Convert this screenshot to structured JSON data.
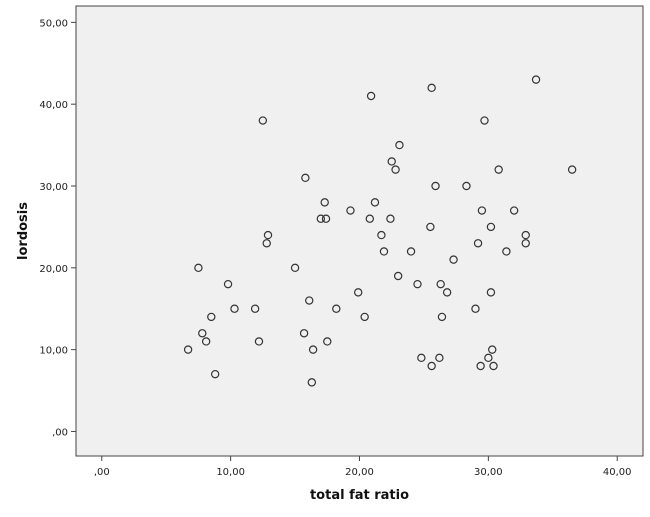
{
  "chart_data": {
    "type": "scatter",
    "title": "",
    "xlabel": "total fat ratio",
    "ylabel": "lordosis",
    "xlim": [
      -2,
      42
    ],
    "ylim": [
      -3,
      52
    ],
    "x_ticks": [
      0,
      10,
      20,
      30,
      40
    ],
    "y_ticks": [
      0,
      10,
      20,
      30,
      40,
      50
    ],
    "x_tick_labels": [
      ",00",
      "10,00",
      "20,00",
      "30,00",
      "40,00"
    ],
    "y_tick_labels": [
      ",00",
      "10,00",
      "20,00",
      "30,00",
      "40,00",
      "50,00"
    ],
    "grid": false,
    "legend": "none",
    "plot_background": "#f0f0f0",
    "marker": "open-circle",
    "marker_color": "#333333",
    "points": [
      [
        6.7,
        10
      ],
      [
        7.5,
        20
      ],
      [
        7.8,
        12
      ],
      [
        8.1,
        11
      ],
      [
        8.5,
        14
      ],
      [
        8.8,
        7
      ],
      [
        9.8,
        18
      ],
      [
        10.3,
        15
      ],
      [
        11.9,
        15
      ],
      [
        12.2,
        11
      ],
      [
        12.5,
        38
      ],
      [
        12.8,
        23
      ],
      [
        12.9,
        24
      ],
      [
        15.0,
        20
      ],
      [
        15.7,
        12
      ],
      [
        15.8,
        31
      ],
      [
        16.1,
        16
      ],
      [
        16.3,
        6
      ],
      [
        16.4,
        10
      ],
      [
        17.0,
        26
      ],
      [
        17.3,
        28
      ],
      [
        17.4,
        26
      ],
      [
        17.5,
        11
      ],
      [
        18.2,
        15
      ],
      [
        19.3,
        27
      ],
      [
        19.9,
        17
      ],
      [
        20.4,
        14
      ],
      [
        20.8,
        26
      ],
      [
        20.9,
        41
      ],
      [
        21.2,
        28
      ],
      [
        21.7,
        24
      ],
      [
        21.9,
        22
      ],
      [
        22.4,
        26
      ],
      [
        22.5,
        33
      ],
      [
        22.8,
        32
      ],
      [
        23.0,
        19
      ],
      [
        23.1,
        35
      ],
      [
        24.0,
        22
      ],
      [
        24.5,
        18
      ],
      [
        24.8,
        9
      ],
      [
        25.5,
        25
      ],
      [
        25.6,
        42
      ],
      [
        25.6,
        8
      ],
      [
        25.9,
        30
      ],
      [
        26.2,
        9
      ],
      [
        26.3,
        18
      ],
      [
        26.4,
        14
      ],
      [
        26.8,
        17
      ],
      [
        27.3,
        21
      ],
      [
        28.3,
        30
      ],
      [
        29.0,
        15
      ],
      [
        29.2,
        23
      ],
      [
        29.4,
        8
      ],
      [
        29.5,
        27
      ],
      [
        29.7,
        38
      ],
      [
        30.0,
        9
      ],
      [
        30.2,
        17
      ],
      [
        30.2,
        25
      ],
      [
        30.3,
        10
      ],
      [
        30.4,
        8
      ],
      [
        30.8,
        32
      ],
      [
        31.4,
        22
      ],
      [
        32.0,
        27
      ],
      [
        32.9,
        24
      ],
      [
        32.9,
        23
      ],
      [
        33.7,
        43
      ],
      [
        36.5,
        32
      ]
    ]
  }
}
